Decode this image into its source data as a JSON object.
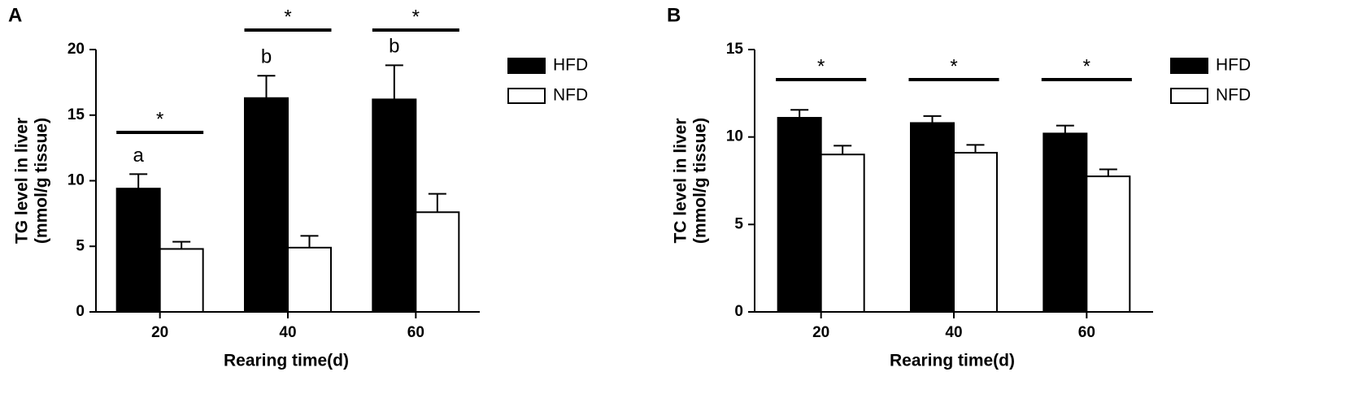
{
  "chart_data": [
    {
      "type": "bar",
      "panel_label": "A",
      "ylabel": [
        "TG level in liver",
        "(mmol/g tissue)"
      ],
      "xlabel": "Rearing time(d)",
      "categories": [
        "20",
        "40",
        "60"
      ],
      "ylim": [
        0,
        20
      ],
      "yticks": [
        0,
        5,
        10,
        15,
        20
      ],
      "grid": false,
      "series": [
        {
          "name": "HFD",
          "color": "#000000",
          "values": [
            9.4,
            16.3,
            16.2
          ],
          "errors": [
            1.1,
            1.7,
            2.6
          ]
        },
        {
          "name": "NFD",
          "color": "#ffffff",
          "values": [
            4.8,
            4.9,
            7.6
          ],
          "errors": [
            0.55,
            0.9,
            1.4
          ]
        }
      ],
      "letters": [
        "a",
        "b",
        "b"
      ],
      "significance": [
        "*",
        "*",
        "*"
      ]
    },
    {
      "type": "bar",
      "panel_label": "B",
      "ylabel": [
        "TC level in liver",
        "(mmol/g tissue)"
      ],
      "xlabel": "Rearing time(d)",
      "categories": [
        "20",
        "40",
        "60"
      ],
      "ylim": [
        0,
        15
      ],
      "yticks": [
        0,
        5,
        10,
        15
      ],
      "grid": false,
      "series": [
        {
          "name": "HFD",
          "color": "#000000",
          "values": [
            11.1,
            10.8,
            10.2
          ],
          "errors": [
            0.45,
            0.4,
            0.45
          ]
        },
        {
          "name": "NFD",
          "color": "#ffffff",
          "values": [
            9.0,
            9.1,
            7.75
          ],
          "errors": [
            0.5,
            0.45,
            0.4
          ]
        }
      ],
      "significance": [
        "*",
        "*",
        "*"
      ]
    }
  ]
}
